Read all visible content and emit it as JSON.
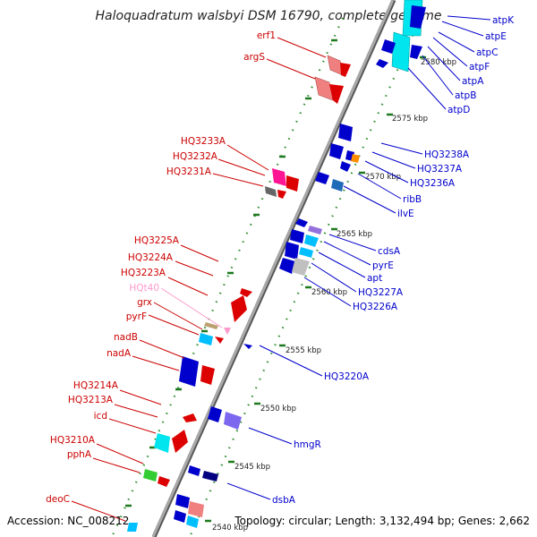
{
  "title": "Haloquadratum walsbyi DSM 16790, complete genome",
  "footer": {
    "accession": "Accession: NC_008212",
    "summary": "Topology: circular; Length: 3,132,494 bp; Genes: 2,662"
  },
  "colors": {
    "axis": "#8a8a8a",
    "tick": "#1f7a1f",
    "dot": "#2e8b2e",
    "reverse_label": "#cc0000",
    "forward_label": "#0000cc",
    "trna_label": "#ff99cc"
  },
  "ticks": [
    {
      "label": "2580 kbp"
    },
    {
      "label": "2575 kbp"
    },
    {
      "label": "2570 kbp"
    },
    {
      "label": "2565 kbp"
    },
    {
      "label": "2560 kbp"
    },
    {
      "label": "2555 kbp"
    },
    {
      "label": "2550 kbp"
    },
    {
      "label": "2545 kbp"
    },
    {
      "label": "2540 kbp"
    }
  ],
  "left_labels": [
    {
      "text": "erf1",
      "color": "#cc0000"
    },
    {
      "text": "argS",
      "color": "#cc0000"
    },
    {
      "text": "HQ3233A",
      "color": "#cc0000"
    },
    {
      "text": "HQ3232A",
      "color": "#cc0000"
    },
    {
      "text": "HQ3231A",
      "color": "#cc0000"
    },
    {
      "text": "HQ3225A",
      "color": "#cc0000"
    },
    {
      "text": "HQ3224A",
      "color": "#cc0000"
    },
    {
      "text": "HQ3223A",
      "color": "#cc0000"
    },
    {
      "text": "HQt40",
      "color": "#ff99cc"
    },
    {
      "text": "grx",
      "color": "#cc0000"
    },
    {
      "text": "pyrF",
      "color": "#cc0000"
    },
    {
      "text": "nadB",
      "color": "#cc0000"
    },
    {
      "text": "nadA",
      "color": "#cc0000"
    },
    {
      "text": "HQ3214A",
      "color": "#cc0000"
    },
    {
      "text": "HQ3213A",
      "color": "#cc0000"
    },
    {
      "text": "icd",
      "color": "#cc0000"
    },
    {
      "text": "HQ3210A",
      "color": "#cc0000"
    },
    {
      "text": "pphA",
      "color": "#cc0000"
    },
    {
      "text": "deoC",
      "color": "#cc0000"
    }
  ],
  "right_labels": [
    {
      "text": "atpK",
      "color": "#0000cc"
    },
    {
      "text": "atpE",
      "color": "#0000cc"
    },
    {
      "text": "atpC",
      "color": "#0000cc"
    },
    {
      "text": "atpF",
      "color": "#0000cc"
    },
    {
      "text": "atpA",
      "color": "#0000cc"
    },
    {
      "text": "atpB",
      "color": "#0000cc"
    },
    {
      "text": "atpD",
      "color": "#0000cc"
    },
    {
      "text": "HQ3238A",
      "color": "#0000cc"
    },
    {
      "text": "HQ3237A",
      "color": "#0000cc"
    },
    {
      "text": "HQ3236A",
      "color": "#0000cc"
    },
    {
      "text": "ribB",
      "color": "#0000cc"
    },
    {
      "text": "ilvE",
      "color": "#0000cc"
    },
    {
      "text": "cdsA",
      "color": "#0000cc"
    },
    {
      "text": "pyrE",
      "color": "#0000cc"
    },
    {
      "text": "apt",
      "color": "#0000cc"
    },
    {
      "text": "HQ3227A",
      "color": "#0000cc"
    },
    {
      "text": "HQ3226A",
      "color": "#0000cc"
    },
    {
      "text": "HQ3220A",
      "color": "#0000cc"
    },
    {
      "text": "hmgR",
      "color": "#0000cc"
    },
    {
      "text": "dsbA",
      "color": "#0000cc"
    }
  ]
}
